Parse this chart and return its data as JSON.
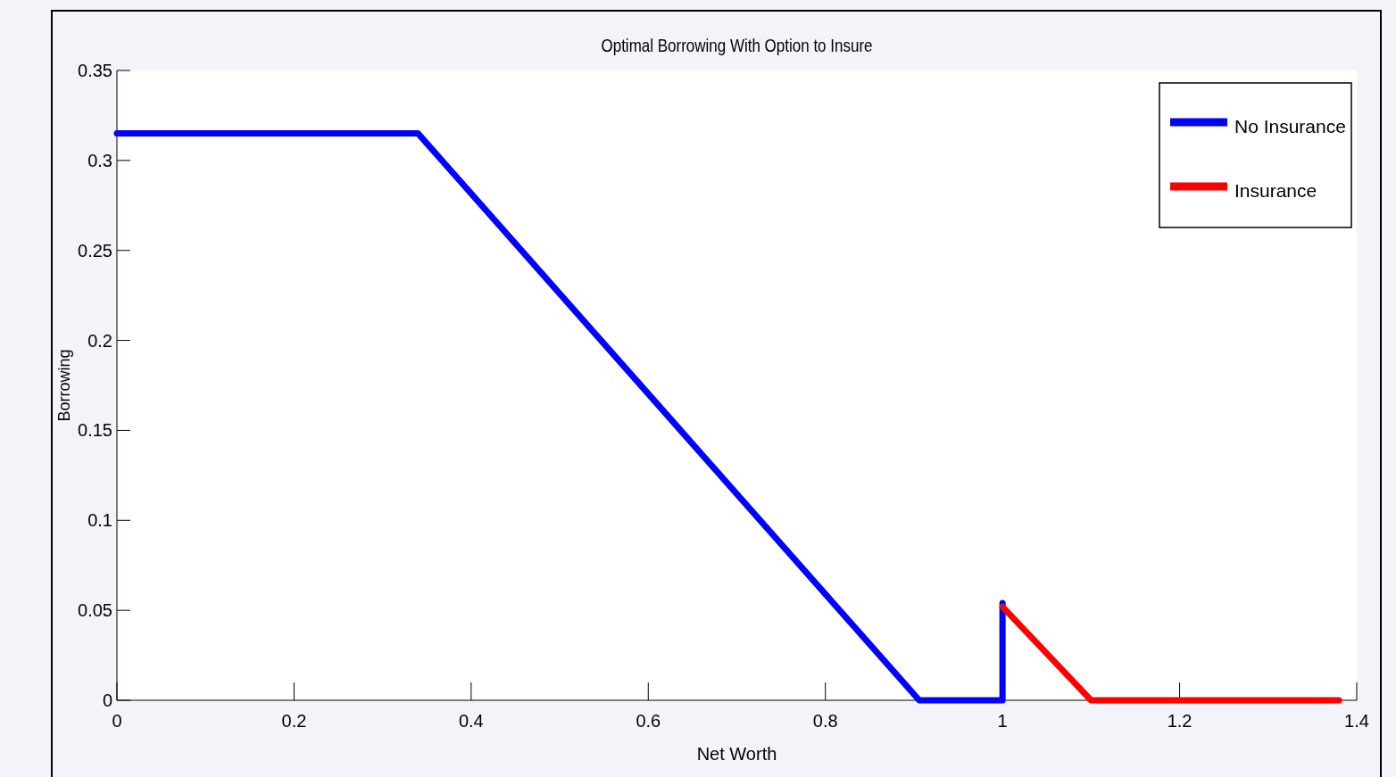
{
  "chart_data": {
    "type": "line",
    "title": "Optimal Borrowing With Option to Insure",
    "xlabel": "Net Worth",
    "ylabel": "Borrowing",
    "xlim": [
      0,
      1.4
    ],
    "xticks": [
      0,
      0.2,
      0.4,
      0.6,
      0.8,
      1,
      1.2,
      1.4
    ],
    "ylim": [
      0,
      0.35
    ],
    "yticks": [
      0,
      0.05,
      0.1,
      0.15,
      0.2,
      0.25,
      0.3,
      0.35
    ],
    "grid": false,
    "legend": "top right",
    "line_style": "solid",
    "marker": "none",
    "series": [
      {
        "name": "No Insurance",
        "color": "#0000ff",
        "x": [
          0,
          0.34,
          0.906,
          1.0,
          1.0
        ],
        "values": [
          0.315,
          0.315,
          0,
          0,
          0.054
        ]
      },
      {
        "name": "Insurance",
        "color": "#ff0000",
        "x": [
          1.0,
          1.1,
          1.38
        ],
        "values": [
          0.052,
          0,
          0
        ]
      }
    ]
  }
}
